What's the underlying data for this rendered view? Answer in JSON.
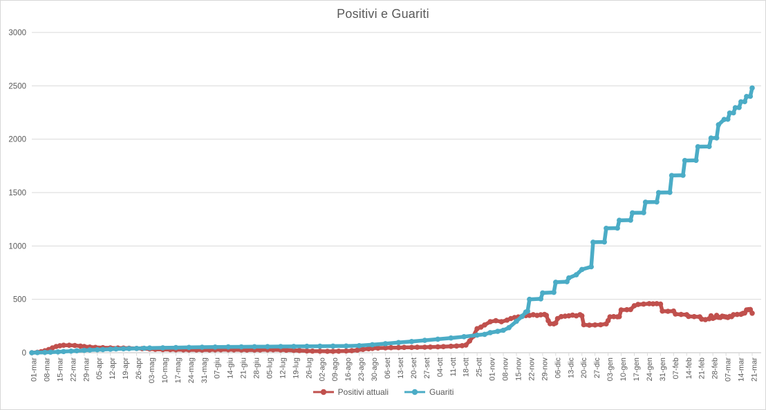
{
  "chart_data": {
    "type": "line",
    "title": "Positivi e Guariti",
    "xlabel": "",
    "ylabel": "",
    "ylim": [
      0,
      3000
    ],
    "yticks": [
      0,
      500,
      1000,
      1500,
      2000,
      2500,
      3000
    ],
    "grid": "horizontal-only",
    "legend_position": "bottom-center",
    "x_total_days": 385,
    "xtick_interval_days": 7,
    "xtick_labels": [
      "01-mar",
      "08-mar",
      "15-mar",
      "22-mar",
      "29-mar",
      "05-apr",
      "12-apr",
      "19-apr",
      "26-apr",
      "03-mag",
      "10-mag",
      "17-mag",
      "24-mag",
      "31-mag",
      "07-giu",
      "14-giu",
      "21-giu",
      "28-giu",
      "05-lug",
      "12-lug",
      "19-lug",
      "26-lug",
      "02-ago",
      "09-ago",
      "16-ago",
      "23-ago",
      "30-ago",
      "06-set",
      "13-set",
      "20-set",
      "27-set",
      "04-ott",
      "11-ott",
      "18-ott",
      "25-ott",
      "01-nov",
      "08-nov",
      "15-nov",
      "22-nov",
      "29-nov",
      "06-dic",
      "13-dic",
      "20-dic",
      "27-dic",
      "03-gen",
      "10-gen",
      "17-gen",
      "24-gen",
      "31-gen",
      "07-feb",
      "14-feb",
      "21-feb",
      "28-feb",
      "07-mar",
      "14-mar",
      "21-mar"
    ],
    "text_color": "#595959",
    "grid_color": "#d9d9d9",
    "axis_color": "#bfbfbf",
    "series": [
      {
        "name": "Positivi attuali",
        "color": "#c0504d",
        "points": [
          [
            0,
            0
          ],
          [
            3,
            4
          ],
          [
            5,
            10
          ],
          [
            7,
            18
          ],
          [
            9,
            30
          ],
          [
            11,
            45
          ],
          [
            13,
            58
          ],
          [
            15,
            65
          ],
          [
            17,
            70
          ],
          [
            20,
            70
          ],
          [
            23,
            68
          ],
          [
            26,
            62
          ],
          [
            28,
            58
          ],
          [
            31,
            53
          ],
          [
            34,
            50
          ],
          [
            38,
            47
          ],
          [
            42,
            45
          ],
          [
            46,
            44
          ],
          [
            49,
            43
          ],
          [
            52,
            42
          ],
          [
            56,
            40
          ],
          [
            59,
            38
          ],
          [
            63,
            35
          ],
          [
            66,
            32
          ],
          [
            70,
            30
          ],
          [
            74,
            29
          ],
          [
            77,
            28
          ],
          [
            81,
            27
          ],
          [
            84,
            26
          ],
          [
            88,
            26
          ],
          [
            91,
            25
          ],
          [
            95,
            26
          ],
          [
            98,
            27
          ],
          [
            101,
            28
          ],
          [
            105,
            28
          ],
          [
            108,
            27
          ],
          [
            112,
            26
          ],
          [
            115,
            25
          ],
          [
            119,
            25
          ],
          [
            122,
            26
          ],
          [
            126,
            27
          ],
          [
            129,
            28
          ],
          [
            133,
            26
          ],
          [
            136,
            24
          ],
          [
            140,
            22
          ],
          [
            143,
            20
          ],
          [
            147,
            17
          ],
          [
            150,
            15
          ],
          [
            154,
            14
          ],
          [
            158,
            13
          ],
          [
            161,
            13
          ],
          [
            164,
            14
          ],
          [
            168,
            16
          ],
          [
            171,
            19
          ],
          [
            174,
            24
          ],
          [
            177,
            31
          ],
          [
            180,
            37
          ],
          [
            182,
            40
          ],
          [
            185,
            43
          ],
          [
            189,
            45
          ],
          [
            192,
            47
          ],
          [
            196,
            48
          ],
          [
            199,
            50
          ],
          [
            203,
            50
          ],
          [
            206,
            51
          ],
          [
            210,
            52
          ],
          [
            213,
            53
          ],
          [
            217,
            55
          ],
          [
            220,
            57
          ],
          [
            224,
            60
          ],
          [
            227,
            63
          ],
          [
            230,
            66
          ],
          [
            232,
            72
          ],
          [
            234,
            110
          ],
          [
            236,
            155
          ],
          [
            238,
            225
          ],
          [
            240,
            240
          ],
          [
            242,
            260
          ],
          [
            245,
            290
          ],
          [
            248,
            300
          ],
          [
            251,
            290
          ],
          [
            254,
            305
          ],
          [
            256,
            320
          ],
          [
            258,
            330
          ],
          [
            260,
            335
          ],
          [
            262,
            340
          ],
          [
            264,
            348
          ],
          [
            266,
            350
          ],
          [
            268,
            356
          ],
          [
            270,
            350
          ],
          [
            272,
            355
          ],
          [
            274,
            358
          ],
          [
            275,
            350
          ],
          [
            276,
            300
          ],
          [
            277,
            272
          ],
          [
            279,
            270
          ],
          [
            280,
            278
          ],
          [
            281,
            320
          ],
          [
            283,
            338
          ],
          [
            285,
            342
          ],
          [
            287,
            345
          ],
          [
            289,
            352
          ],
          [
            291,
            345
          ],
          [
            293,
            356
          ],
          [
            294,
            346
          ],
          [
            295,
            262
          ],
          [
            298,
            258
          ],
          [
            301,
            260
          ],
          [
            304,
            262
          ],
          [
            307,
            270
          ],
          [
            308,
            300
          ],
          [
            309,
            336
          ],
          [
            311,
            338
          ],
          [
            313,
            336
          ],
          [
            314,
            338
          ],
          [
            315,
            400
          ],
          [
            318,
            403
          ],
          [
            320,
            405
          ],
          [
            322,
            440
          ],
          [
            324,
            452
          ],
          [
            327,
            455
          ],
          [
            330,
            460
          ],
          [
            332,
            458
          ],
          [
            334,
            460
          ],
          [
            336,
            455
          ],
          [
            337,
            390
          ],
          [
            340,
            388
          ],
          [
            343,
            390
          ],
          [
            344,
            362
          ],
          [
            347,
            358
          ],
          [
            350,
            356
          ],
          [
            351,
            340
          ],
          [
            354,
            338
          ],
          [
            357,
            336
          ],
          [
            358,
            315
          ],
          [
            360,
            310
          ],
          [
            362,
            318
          ],
          [
            363,
            345
          ],
          [
            364,
            322
          ],
          [
            365,
            330
          ],
          [
            366,
            350
          ],
          [
            367,
            332
          ],
          [
            368,
            330
          ],
          [
            369,
            342
          ],
          [
            370,
            338
          ],
          [
            371,
            335
          ],
          [
            372,
            330
          ],
          [
            373,
            340
          ],
          [
            374,
            338
          ],
          [
            375,
            356
          ],
          [
            377,
            358
          ],
          [
            379,
            360
          ],
          [
            380,
            368
          ],
          [
            381,
            372
          ],
          [
            382,
            400
          ],
          [
            383,
            403
          ],
          [
            384,
            405
          ],
          [
            385,
            370
          ]
        ]
      },
      {
        "name": "Guariti",
        "color": "#4bacc6",
        "points": [
          [
            0,
            0
          ],
          [
            3,
            1
          ],
          [
            7,
            3
          ],
          [
            10,
            5
          ],
          [
            14,
            8
          ],
          [
            17,
            11
          ],
          [
            21,
            15
          ],
          [
            24,
            18
          ],
          [
            28,
            22
          ],
          [
            31,
            25
          ],
          [
            35,
            28
          ],
          [
            38,
            30
          ],
          [
            42,
            33
          ],
          [
            45,
            35
          ],
          [
            49,
            37
          ],
          [
            52,
            38
          ],
          [
            56,
            40
          ],
          [
            60,
            42
          ],
          [
            63,
            44
          ],
          [
            70,
            46
          ],
          [
            77,
            48
          ],
          [
            84,
            50
          ],
          [
            91,
            52
          ],
          [
            98,
            53
          ],
          [
            105,
            54
          ],
          [
            112,
            55
          ],
          [
            119,
            56
          ],
          [
            126,
            57
          ],
          [
            133,
            58
          ],
          [
            140,
            59
          ],
          [
            147,
            60
          ],
          [
            154,
            61
          ],
          [
            161,
            62
          ],
          [
            168,
            63
          ],
          [
            175,
            66
          ],
          [
            182,
            75
          ],
          [
            189,
            85
          ],
          [
            196,
            95
          ],
          [
            203,
            105
          ],
          [
            210,
            116
          ],
          [
            217,
            127
          ],
          [
            224,
            138
          ],
          [
            231,
            150
          ],
          [
            238,
            165
          ],
          [
            242,
            172
          ],
          [
            245,
            188
          ],
          [
            249,
            200
          ],
          [
            252,
            210
          ],
          [
            255,
            235
          ],
          [
            259,
            295
          ],
          [
            262,
            340
          ],
          [
            264,
            380
          ],
          [
            265,
            390
          ],
          [
            266,
            500
          ],
          [
            272,
            505
          ],
          [
            273,
            560
          ],
          [
            279,
            565
          ],
          [
            280,
            660
          ],
          [
            286,
            665
          ],
          [
            287,
            700
          ],
          [
            291,
            730
          ],
          [
            294,
            780
          ],
          [
            299,
            805
          ],
          [
            300,
            1035
          ],
          [
            306,
            1037
          ],
          [
            307,
            1165
          ],
          [
            313,
            1167
          ],
          [
            314,
            1240
          ],
          [
            320,
            1242
          ],
          [
            321,
            1310
          ],
          [
            327,
            1312
          ],
          [
            328,
            1410
          ],
          [
            334,
            1412
          ],
          [
            335,
            1500
          ],
          [
            341,
            1502
          ],
          [
            342,
            1660
          ],
          [
            348,
            1662
          ],
          [
            349,
            1800
          ],
          [
            355,
            1802
          ],
          [
            356,
            1930
          ],
          [
            362,
            1932
          ],
          [
            363,
            2010
          ],
          [
            366,
            2012
          ],
          [
            367,
            2135
          ],
          [
            370,
            2185
          ],
          [
            372,
            2187
          ],
          [
            373,
            2245
          ],
          [
            375,
            2247
          ],
          [
            376,
            2295
          ],
          [
            378,
            2297
          ],
          [
            379,
            2350
          ],
          [
            381,
            2352
          ],
          [
            382,
            2400
          ],
          [
            384,
            2402
          ],
          [
            385,
            2480
          ]
        ]
      }
    ]
  }
}
